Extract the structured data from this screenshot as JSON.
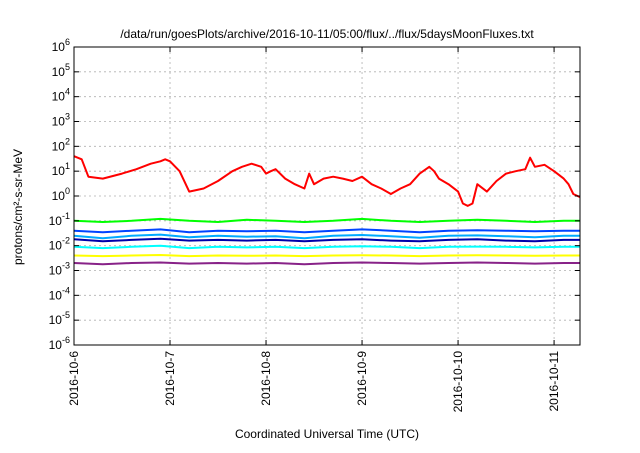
{
  "chart_data": {
    "type": "line",
    "title": "/data/run/goesPlots/archive/2016-10-11/05:00/flux/../flux/5daysMoonFluxes.txt",
    "xlabel": "Coordinated Universal Time (UTC)",
    "ylabel": "protons/cm²-s-sr-MeV",
    "y_scale": "log",
    "ylim": [
      1e-06,
      1000000.0
    ],
    "xlim": [
      0,
      5.27
    ],
    "grid": true,
    "legend": "none",
    "x_ticks": [
      {
        "x": 0,
        "label": "2016-10-6"
      },
      {
        "x": 1,
        "label": "2016-10-7"
      },
      {
        "x": 2,
        "label": "2016-10-8"
      },
      {
        "x": 3,
        "label": "2016-10-9"
      },
      {
        "x": 4,
        "label": "2016-10-10"
      },
      {
        "x": 5,
        "label": "2016-10-11"
      }
    ],
    "y_ticks": [
      {
        "exp": 6,
        "base": "10",
        "sup": "6"
      },
      {
        "exp": 5,
        "base": "10",
        "sup": "5"
      },
      {
        "exp": 4,
        "base": "10",
        "sup": "4"
      },
      {
        "exp": 3,
        "base": "10",
        "sup": "3"
      },
      {
        "exp": 2,
        "base": "10",
        "sup": "2"
      },
      {
        "exp": 1,
        "base": "10",
        "sup": "1"
      },
      {
        "exp": 0,
        "base": "10",
        "sup": "0"
      },
      {
        "exp": -1,
        "base": "10",
        "sup": "-1"
      },
      {
        "exp": -2,
        "base": "10",
        "sup": "-2"
      },
      {
        "exp": -3,
        "base": "10",
        "sup": "-3"
      },
      {
        "exp": -4,
        "base": "10",
        "sup": "-4"
      },
      {
        "exp": -5,
        "base": "10",
        "sup": "-5"
      },
      {
        "exp": -6,
        "base": "10",
        "sup": "-6"
      }
    ],
    "series": [
      {
        "color": "#ff0000",
        "x": [
          0,
          0.08,
          0.15,
          0.3,
          0.5,
          0.65,
          0.8,
          0.9,
          0.95,
          1.0,
          1.1,
          1.2,
          1.35,
          1.5,
          1.65,
          1.75,
          1.85,
          1.95,
          2.0,
          2.05,
          2.1,
          2.2,
          2.3,
          2.4,
          2.45,
          2.5,
          2.6,
          2.7,
          2.8,
          2.9,
          3.0,
          3.1,
          3.2,
          3.3,
          3.4,
          3.5,
          3.6,
          3.7,
          3.75,
          3.8,
          3.9,
          4.0,
          4.05,
          4.1,
          4.15,
          4.2,
          4.3,
          4.4,
          4.5,
          4.6,
          4.7,
          4.75,
          4.8,
          4.9,
          5.0,
          5.1,
          5.15,
          5.2,
          5.27
        ],
        "values": [
          40,
          30,
          6,
          5,
          8,
          12,
          20,
          25,
          30,
          25,
          10,
          1.5,
          2,
          4,
          10,
          15,
          20,
          15,
          8,
          10,
          12,
          5,
          3,
          2,
          8,
          3,
          5,
          6,
          5,
          4,
          6,
          3,
          2,
          1.2,
          2,
          3,
          8,
          15,
          10,
          5,
          3,
          1.5,
          0.5,
          0.4,
          0.5,
          3,
          1.5,
          4,
          8,
          10,
          12,
          35,
          15,
          18,
          10,
          5,
          3,
          1.2,
          0.9
        ]
      },
      {
        "color": "#00ff00",
        "x": [
          0,
          0.3,
          0.6,
          0.9,
          1.2,
          1.5,
          1.8,
          2.1,
          2.4,
          2.7,
          3.0,
          3.3,
          3.6,
          3.9,
          4.2,
          4.5,
          4.8,
          5.1,
          5.27
        ],
        "values": [
          0.1,
          0.09,
          0.1,
          0.12,
          0.1,
          0.09,
          0.11,
          0.1,
          0.09,
          0.1,
          0.12,
          0.1,
          0.09,
          0.1,
          0.11,
          0.1,
          0.09,
          0.1,
          0.1
        ]
      },
      {
        "color": "#0044ff",
        "x": [
          0,
          0.3,
          0.6,
          0.9,
          1.2,
          1.5,
          1.8,
          2.1,
          2.4,
          2.7,
          3.0,
          3.3,
          3.6,
          3.9,
          4.2,
          4.5,
          4.8,
          5.1,
          5.27
        ],
        "values": [
          0.04,
          0.035,
          0.04,
          0.045,
          0.035,
          0.04,
          0.038,
          0.04,
          0.035,
          0.04,
          0.045,
          0.04,
          0.035,
          0.04,
          0.042,
          0.04,
          0.038,
          0.04,
          0.04
        ]
      },
      {
        "color": "#00aaff",
        "x": [
          0,
          0.3,
          0.6,
          0.9,
          1.2,
          1.5,
          1.8,
          2.1,
          2.4,
          2.7,
          3.0,
          3.3,
          3.6,
          3.9,
          4.2,
          4.5,
          4.8,
          5.1,
          5.27
        ],
        "values": [
          0.025,
          0.02,
          0.025,
          0.028,
          0.022,
          0.025,
          0.023,
          0.024,
          0.02,
          0.025,
          0.027,
          0.024,
          0.021,
          0.025,
          0.026,
          0.024,
          0.022,
          0.025,
          0.025
        ]
      },
      {
        "color": "#0000aa",
        "x": [
          0,
          0.3,
          0.6,
          0.9,
          1.2,
          1.5,
          1.8,
          2.1,
          2.4,
          2.7,
          3.0,
          3.3,
          3.6,
          3.9,
          4.2,
          4.5,
          4.8,
          5.1,
          5.27
        ],
        "values": [
          0.018,
          0.015,
          0.017,
          0.019,
          0.016,
          0.017,
          0.016,
          0.017,
          0.015,
          0.017,
          0.018,
          0.016,
          0.015,
          0.017,
          0.018,
          0.016,
          0.015,
          0.017,
          0.017
        ]
      },
      {
        "color": "#00ffff",
        "x": [
          0,
          0.3,
          0.6,
          0.9,
          1.2,
          1.5,
          1.8,
          2.1,
          2.4,
          2.7,
          3.0,
          3.3,
          3.6,
          3.9,
          4.2,
          4.5,
          4.8,
          5.1,
          5.27
        ],
        "values": [
          0.009,
          0.008,
          0.009,
          0.01,
          0.008,
          0.009,
          0.0085,
          0.009,
          0.008,
          0.009,
          0.0095,
          0.009,
          0.008,
          0.009,
          0.0092,
          0.009,
          0.0085,
          0.009,
          0.009
        ]
      },
      {
        "color": "#ffff00",
        "x": [
          0,
          0.3,
          0.6,
          0.9,
          1.2,
          1.5,
          1.8,
          2.1,
          2.4,
          2.7,
          3.0,
          3.3,
          3.6,
          3.9,
          4.2,
          4.5,
          4.8,
          5.1,
          5.27
        ],
        "values": [
          0.004,
          0.0038,
          0.004,
          0.0042,
          0.0038,
          0.004,
          0.0039,
          0.004,
          0.0038,
          0.004,
          0.0041,
          0.004,
          0.0038,
          0.004,
          0.0041,
          0.004,
          0.0039,
          0.004,
          0.004
        ]
      },
      {
        "color": "#882288",
        "x": [
          0,
          0.3,
          0.6,
          0.9,
          1.2,
          1.5,
          1.8,
          2.1,
          2.4,
          2.7,
          3.0,
          3.3,
          3.6,
          3.9,
          4.2,
          4.5,
          4.8,
          5.1,
          5.27
        ],
        "values": [
          0.002,
          0.0018,
          0.002,
          0.0021,
          0.0019,
          0.002,
          0.0019,
          0.002,
          0.0018,
          0.002,
          0.0021,
          0.002,
          0.0019,
          0.002,
          0.0021,
          0.002,
          0.0019,
          0.002,
          0.002
        ]
      }
    ]
  }
}
